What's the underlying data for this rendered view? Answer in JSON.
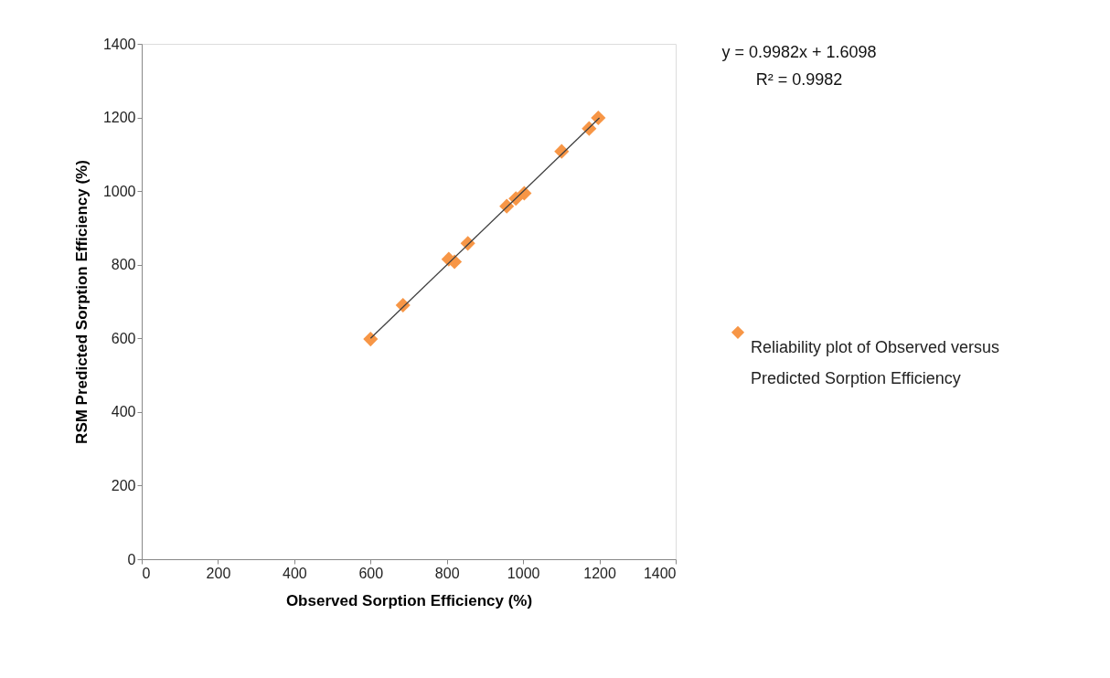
{
  "chart_data": {
    "type": "scatter",
    "xlabel": "Observed Sorption Efficiency (%)",
    "ylabel": "RSM Predicted Sorption Efficiency (%)",
    "annotations": [
      "y = 0.9982x + 1.6098",
      "R² = 0.9982"
    ],
    "xlim": [
      0,
      1400
    ],
    "xticks": [
      0,
      200,
      400,
      600,
      800,
      1000,
      1200,
      1400
    ],
    "ylim": [
      0,
      1400
    ],
    "yticks": [
      0,
      200,
      400,
      600,
      800,
      1000,
      1200,
      1400
    ],
    "grid": false,
    "legend": "right",
    "marker": "diamond",
    "series": [
      {
        "name": "Reliability plot of Observed versus Predicted Sorption Efficiency",
        "color": "#f79646",
        "x": [
          600,
          685,
          805,
          820,
          855,
          957,
          981,
          1003,
          1101,
          1173,
          1197
        ],
        "values": [
          598,
          690,
          815,
          808,
          858,
          959,
          980,
          994,
          1108,
          1170,
          1199
        ]
      },
      {
        "type": "line",
        "color": "#404040",
        "x": [
          600,
          1200
        ],
        "values": [
          600,
          1199
        ],
        "line_style": "solid",
        "marker": "none"
      }
    ]
  }
}
